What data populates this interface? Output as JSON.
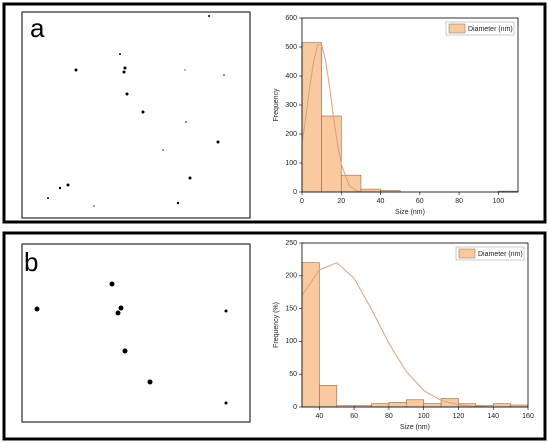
{
  "panel_labels": [
    "a",
    "b"
  ],
  "chart_data": [
    {
      "type": "histogram",
      "xlabel": "Size (nm)",
      "ylabel": "Frequency",
      "bins": [
        0,
        10,
        20,
        30,
        40,
        50,
        60,
        70,
        80,
        90,
        100,
        110
      ],
      "series": [
        {
          "name": "Diameter (nm)",
          "color": "#f9c9a0",
          "values": [
            515,
            262,
            58,
            10,
            5,
            0,
            0,
            0,
            0,
            0,
            3
          ]
        }
      ],
      "fit": {
        "color": "#d9a27a",
        "x": [
          0,
          2,
          4,
          6,
          8,
          10,
          12,
          14,
          16,
          18,
          20,
          24,
          28,
          32
        ],
        "y": [
          167,
          262,
          365,
          453,
          508,
          508,
          453,
          365,
          262,
          167,
          96,
          22,
          3,
          0
        ]
      },
      "xlim": [
        0,
        110
      ],
      "xticks": [
        0,
        20,
        40,
        60,
        80,
        100
      ],
      "ylim": [
        0,
        600
      ],
      "yticks": [
        0,
        100,
        200,
        300,
        400,
        500,
        600
      ],
      "legend": "top-right"
    },
    {
      "type": "histogram",
      "xlabel": "Size (nm)",
      "ylabel": "Frequency (%)",
      "bins": [
        30,
        40,
        50,
        60,
        70,
        80,
        90,
        100,
        110,
        120,
        130,
        140,
        150,
        160
      ],
      "series": [
        {
          "name": "Diameter (nm)",
          "color": "#f9c9a0",
          "values": [
            220,
            33,
            2,
            2,
            5,
            7,
            11,
            5,
            13,
            5,
            2,
            5,
            3
          ]
        }
      ],
      "fit": {
        "color": "#d9a27a",
        "x": [
          30,
          40,
          50,
          60,
          70,
          80,
          90,
          100,
          110,
          120,
          130,
          140,
          150,
          160
        ],
        "y": [
          170,
          209,
          220,
          196,
          149,
          97,
          54,
          25,
          10,
          3,
          1,
          0,
          0,
          0
        ]
      },
      "xlim": [
        30,
        160
      ],
      "xticks": [
        40,
        60,
        80,
        100,
        120,
        140,
        160
      ],
      "ylim": [
        0,
        250
      ],
      "yticks": [
        0,
        50,
        100,
        150,
        200,
        250
      ],
      "legend": "top-right"
    }
  ]
}
